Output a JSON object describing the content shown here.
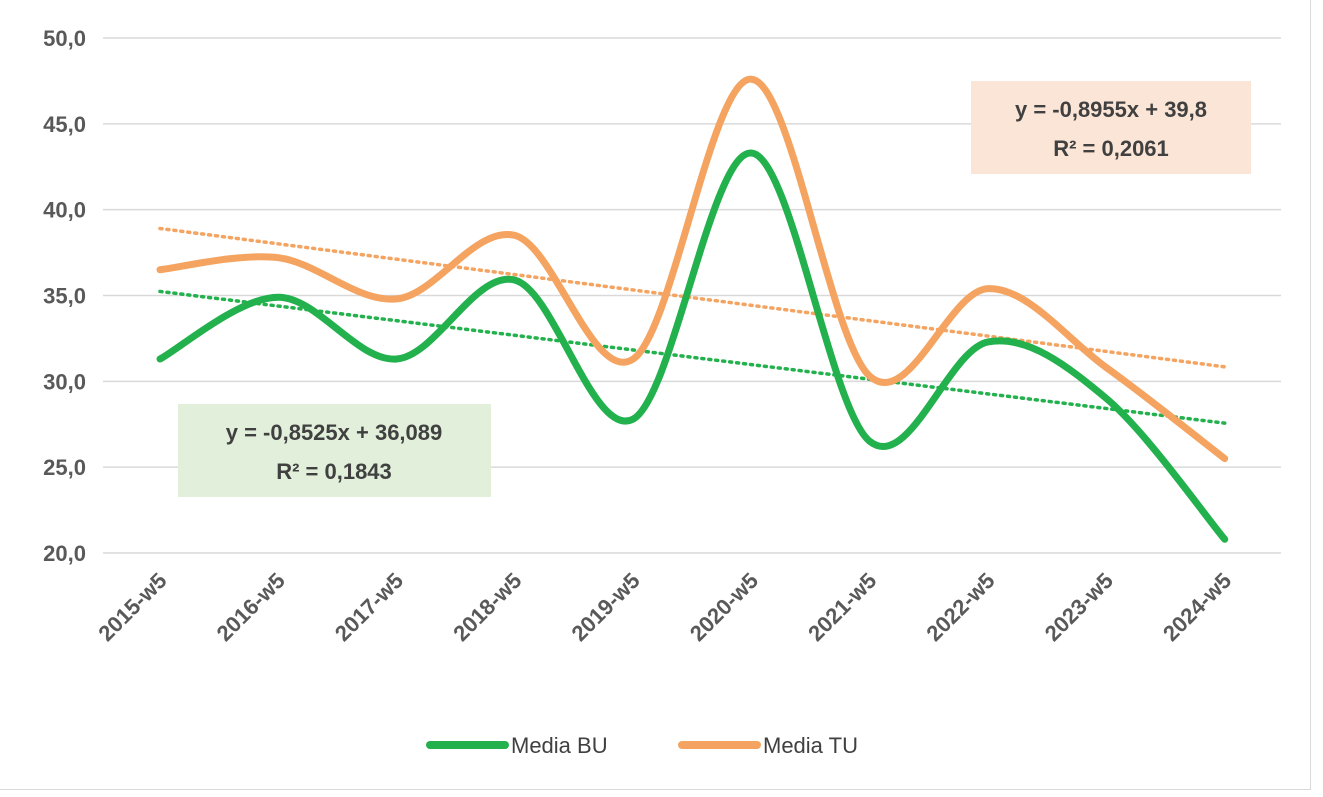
{
  "chart_data": {
    "type": "line",
    "categories": [
      "2015-w5",
      "2016-w5",
      "2017-w5",
      "2018-w5",
      "2019-w5",
      "2020-w5",
      "2021-w5",
      "2022-w5",
      "2023-w5",
      "2024-w5"
    ],
    "ylim": [
      20,
      50
    ],
    "yticks": [
      "20,0",
      "25,0",
      "30,0",
      "35,0",
      "40,0",
      "45,0",
      "50,0"
    ],
    "ytick_values": [
      20,
      25,
      30,
      35,
      40,
      45,
      50
    ],
    "grid": true,
    "legend_position": "bottom",
    "series": [
      {
        "name": "Media BU",
        "color": "#22b14c",
        "values": [
          31.3,
          34.9,
          31.3,
          35.9,
          27.8,
          43.3,
          26.5,
          32.3,
          29.0,
          20.8
        ],
        "trendline": {
          "slope": -0.8525,
          "intercept": 36.089,
          "line1": "y = -0,8525x + 36,089",
          "line2": "R² = 0,1843"
        }
      },
      {
        "name": "Media TU",
        "color": "#f4a460",
        "values": [
          36.5,
          37.2,
          34.8,
          38.5,
          31.3,
          47.6,
          30.3,
          35.4,
          30.8,
          25.5
        ],
        "trendline": {
          "slope": -0.8955,
          "intercept": 39.8,
          "line1": "y = -0,8955x + 39,8",
          "line2": "R² = 0,2061"
        }
      }
    ]
  }
}
